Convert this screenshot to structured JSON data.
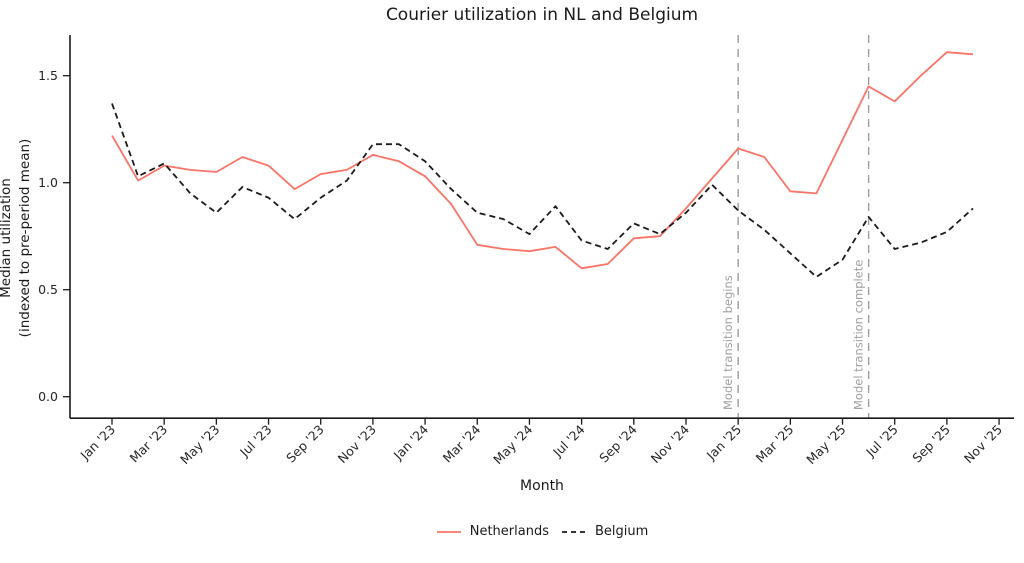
{
  "title": "Courier utilization in NL and Belgium",
  "x_axis": {
    "label": "Month"
  },
  "y_axis": {
    "label_line1": "Median utilization",
    "label_line2": "(indexed to pre-period mean)"
  },
  "legend": {
    "position": "bottom-center",
    "items": [
      {
        "label": "Netherlands",
        "style": "solid",
        "color": "#fa7468"
      },
      {
        "label": "Belgium",
        "style": "dashed",
        "color": "#1a1a1a"
      }
    ]
  },
  "annotations": [
    {
      "text": "Model transition begins",
      "at_month": "Jan '25"
    },
    {
      "text": "Model transition complete",
      "at_month": "Jun '25"
    }
  ],
  "chart_data": {
    "type": "line",
    "title": "Courier utilization in NL and Belgium",
    "xlabel": "Month",
    "ylabel": "Median utilization (indexed to pre-period mean)",
    "x": [
      "Jan '23",
      "Feb '23",
      "Mar '23",
      "Apr '23",
      "May '23",
      "Jun '23",
      "Jul '23",
      "Aug '23",
      "Sep '23",
      "Oct '23",
      "Nov '23",
      "Dec '23",
      "Jan '24",
      "Feb '24",
      "Mar '24",
      "Apr '24",
      "May '24",
      "Jun '24",
      "Jul '24",
      "Aug '24",
      "Sep '24",
      "Oct '24",
      "Nov '24",
      "Dec '24",
      "Jan '25",
      "Feb '25",
      "Mar '25",
      "Apr '25",
      "May '25",
      "Jun '25",
      "Jul '25",
      "Aug '25",
      "Sep '25",
      "Oct '25"
    ],
    "x_tick_labels": [
      "Jan '23",
      "Mar '23",
      "May '23",
      "Jul '23",
      "Sep '23",
      "Nov '23",
      "Jan '24",
      "Mar '24",
      "May '24",
      "Jul '24",
      "Sep '24",
      "Nov '24",
      "Jan '25",
      "Mar '25",
      "May '25",
      "Jul '25",
      "Sep '25",
      "Nov '25"
    ],
    "y_ticks": [
      "0.0",
      "0.5",
      "1.0",
      "1.5"
    ],
    "y_tick_values": [
      0.0,
      0.5,
      1.0,
      1.5
    ],
    "ylim": [
      -0.1,
      1.69
    ],
    "grid": false,
    "legend_position": "bottom-center",
    "series": [
      {
        "name": "Netherlands",
        "color": "#fa7468",
        "line_style": "solid",
        "values": [
          1.22,
          1.01,
          1.08,
          1.06,
          1.05,
          1.12,
          1.08,
          0.97,
          1.04,
          1.06,
          1.13,
          1.1,
          1.03,
          0.9,
          0.71,
          0.69,
          0.68,
          0.7,
          0.6,
          0.62,
          0.74,
          0.75,
          0.88,
          1.02,
          1.16,
          1.12,
          0.96,
          0.95,
          1.2,
          1.45,
          1.38,
          1.5,
          1.61,
          1.6
        ]
      },
      {
        "name": "Belgium",
        "color": "#1a1a1a",
        "line_style": "dashed",
        "values": [
          1.37,
          1.03,
          1.09,
          0.95,
          0.86,
          0.98,
          0.93,
          0.83,
          0.93,
          1.01,
          1.18,
          1.18,
          1.1,
          0.97,
          0.86,
          0.83,
          0.76,
          0.89,
          0.73,
          0.69,
          0.81,
          0.76,
          0.86,
          0.99,
          0.87,
          0.78,
          0.67,
          0.56,
          0.64,
          0.84,
          0.69,
          0.72,
          0.77,
          0.88
        ]
      }
    ],
    "vlines": [
      {
        "x": "Jan '25",
        "label": "Model transition begins",
        "color": "#9e9e9e",
        "style": "dashed"
      },
      {
        "x": "Jun '25",
        "label": "Model transition complete",
        "color": "#9e9e9e",
        "style": "dashed"
      }
    ]
  }
}
